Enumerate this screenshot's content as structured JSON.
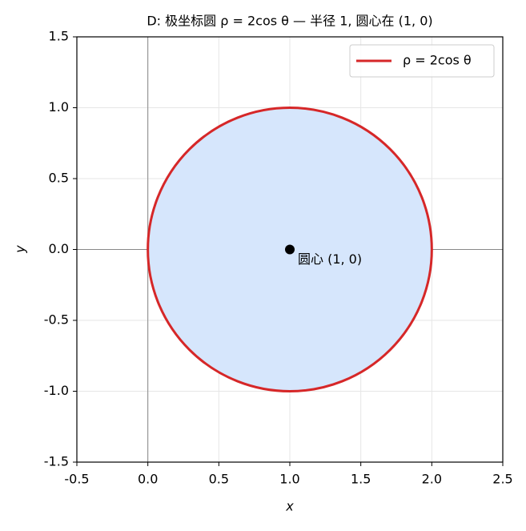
{
  "chart_data": {
    "type": "circle",
    "title": "D: 极坐标圆 ρ = 2cos θ — 半径 1, 圆心在 (1, 0)",
    "x_label": "x",
    "y_label": "y",
    "xlim": [
      -0.5,
      2.5
    ],
    "ylim": [
      -1.5,
      1.5
    ],
    "xticks": [
      -0.5,
      {
        "value": 0,
        "label": "0.0"
      },
      0.5,
      {
        "value": 1,
        "label": "1.0"
      },
      1.5,
      {
        "value": 2,
        "label": "2.0"
      },
      2.5
    ],
    "yticks": [
      -1.5,
      {
        "value": -1,
        "label": "-1.0"
      },
      -0.5,
      {
        "value": 0,
        "label": "0.0"
      },
      0.5,
      {
        "value": 1,
        "label": "1.0"
      },
      1.5
    ],
    "grid": true,
    "legend": "upper right",
    "ref_lines": {
      "x": 0,
      "y": 0
    },
    "series": [
      {
        "name": "ρ = 2cos θ",
        "color": "#d62728",
        "fill": "#d6e6fc",
        "center_x": 1,
        "center_y": 0,
        "radius": 1
      }
    ],
    "point": {
      "x": 1,
      "y": 0,
      "label": "圆心 (1, 0)",
      "color": "#000000"
    }
  }
}
